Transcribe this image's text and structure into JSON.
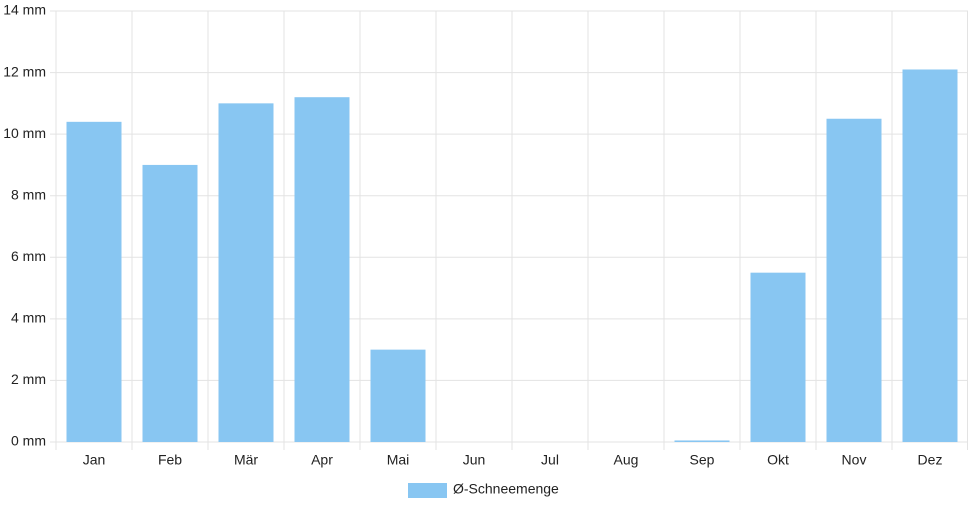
{
  "chart_data": {
    "type": "bar",
    "categories": [
      "Jan",
      "Feb",
      "Mär",
      "Apr",
      "Mai",
      "Jun",
      "Jul",
      "Aug",
      "Sep",
      "Okt",
      "Nov",
      "Dez"
    ],
    "series": [
      {
        "name": "Ø-Schneemenge",
        "color": "#88c6f2",
        "values": [
          10.4,
          9.0,
          11.0,
          11.2,
          3.0,
          0,
          0,
          0,
          0.05,
          5.5,
          10.5,
          12.1
        ]
      }
    ],
    "ylim": [
      0,
      14
    ],
    "yticks": [
      {
        "value": 0,
        "label": "0 mm"
      },
      {
        "value": 2,
        "label": "2 mm"
      },
      {
        "value": 4,
        "label": "4 mm"
      },
      {
        "value": 6,
        "label": "6 mm"
      },
      {
        "value": 8,
        "label": "8 mm"
      },
      {
        "value": 10,
        "label": "10 mm"
      },
      {
        "value": 12,
        "label": "12 mm"
      },
      {
        "value": 14,
        "label": "14 mm"
      }
    ],
    "grid": true,
    "legend": "bottom"
  }
}
